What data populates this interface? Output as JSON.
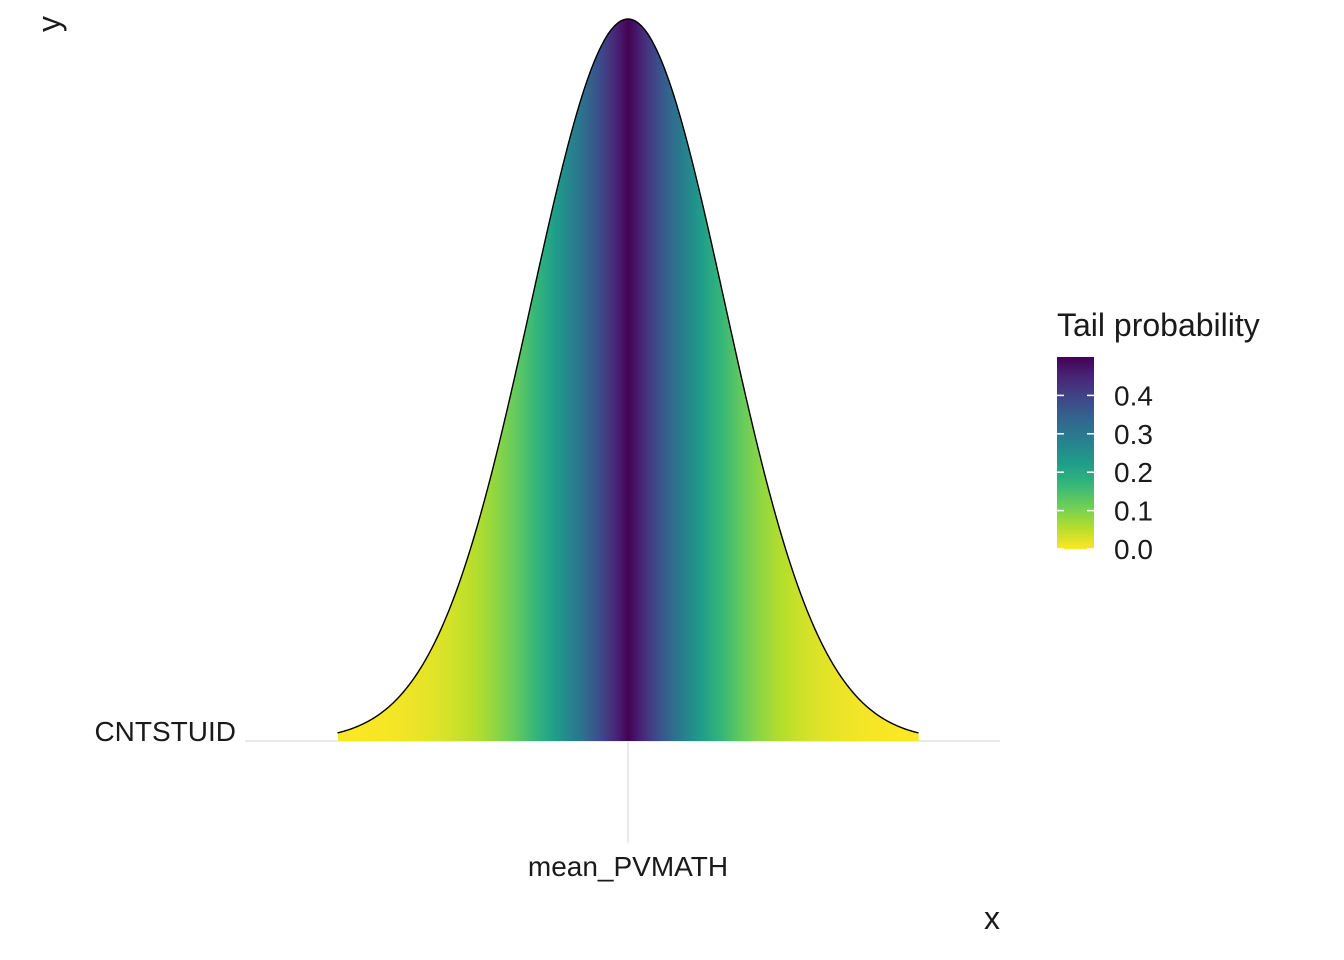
{
  "chart_data": {
    "type": "area",
    "subtype": "density-ridgeline-gradient",
    "title": "",
    "xlabel": "x",
    "ylabel": "y",
    "x_ticks": [
      "mean_PVMATH"
    ],
    "y_ticks": [
      "CNTSTUID"
    ],
    "grid": true,
    "distribution": "normal",
    "x_range_sd": [
      -3,
      3
    ],
    "peak_tail_probability": 0.5,
    "legend": {
      "title": "Tail probability",
      "position": "right",
      "breaks": [
        "0.0",
        "0.1",
        "0.2",
        "0.3",
        "0.4"
      ],
      "break_values": [
        0,
        0.1,
        0.2,
        0.3,
        0.4
      ],
      "range": [
        0,
        0.5
      ],
      "palette": [
        "#FDE725",
        "#B5DE2B",
        "#6ECE58",
        "#35B779",
        "#1F9E89",
        "#26828E",
        "#31688E",
        "#3E4989",
        "#482878",
        "#440154"
      ]
    }
  }
}
